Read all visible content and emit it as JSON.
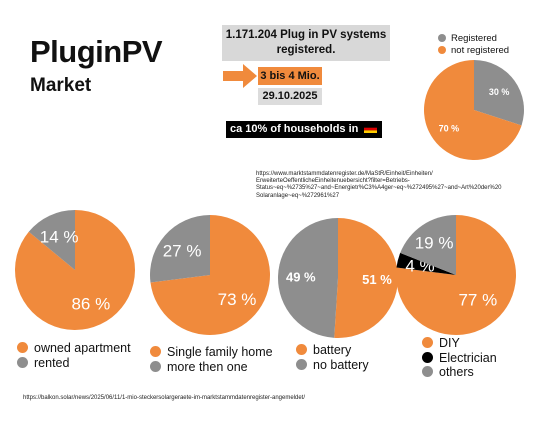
{
  "header": {
    "title": "PluginPV",
    "subtitle": "Market",
    "count_line1": "1.171.204 Plug in PV systems",
    "count_line2": "registered.",
    "estimate": "3 bis 4 Mio.",
    "date": "29.10.2025",
    "households": "ca 10% of households in"
  },
  "sources": {
    "url1_line1": "https://www.marktstammdatenregister.de/MaStR/Einheit/Einheiten/",
    "url1_line2": "ErweiterteOeffentlicheEinheitenuebersicht?filter=Betriebs-",
    "url1_line3": "Status~eq~%2735%27~and~Energietr%C3%A4ger~eq~%272495%27~and~Art%20der%20",
    "url1_line4": "Solaranlage~eq~%272961%27",
    "url2": "https://balkon.solar/news/2025/06/11/1-mio-steckersolargeraete-im-marktstammdatenregister-angemeldet/"
  },
  "colors": {
    "orange": "#f08a3c",
    "gray": "#8e8e8e",
    "black": "#000000",
    "flag_black": "#000000",
    "flag_red": "#dd0000",
    "flag_gold": "#ffce00"
  },
  "chart_data": [
    {
      "id": "registration",
      "type": "pie",
      "legend": [
        "Registered",
        "not registered"
      ],
      "slices": [
        {
          "label": "Registered",
          "value": 30,
          "text": "30 %",
          "color": "#8e8e8e"
        },
        {
          "label": "not registered",
          "value": 70,
          "text": "70 %",
          "color": "#f08a3c"
        }
      ]
    },
    {
      "id": "housing",
      "type": "pie",
      "slices": [
        {
          "label": "owned apartment",
          "value": 86,
          "text": "86 %",
          "color": "#f08a3c"
        },
        {
          "label": "rented",
          "value": 14,
          "text": "14 %",
          "color": "#8e8e8e"
        }
      ]
    },
    {
      "id": "home_type",
      "type": "pie",
      "slices": [
        {
          "label": "Single family home",
          "value": 73,
          "text": "73 %",
          "color": "#f08a3c"
        },
        {
          "label": "more then one",
          "value": 27,
          "text": "27 %",
          "color": "#8e8e8e"
        }
      ]
    },
    {
      "id": "battery",
      "type": "pie",
      "slices": [
        {
          "label": "battery",
          "value": 51,
          "text": "51 %",
          "color": "#f08a3c"
        },
        {
          "label": "no battery",
          "value": 49,
          "text": "49 %",
          "color": "#8e8e8e"
        }
      ]
    },
    {
      "id": "installation",
      "type": "pie",
      "slices": [
        {
          "label": "DIY",
          "value": 77,
          "text": "77 %",
          "color": "#f08a3c"
        },
        {
          "label": "Electrician",
          "value": 4,
          "text": "4 %",
          "color": "#000000"
        },
        {
          "label": "others",
          "value": 19,
          "text": "19 %",
          "color": "#8e8e8e"
        }
      ]
    }
  ]
}
